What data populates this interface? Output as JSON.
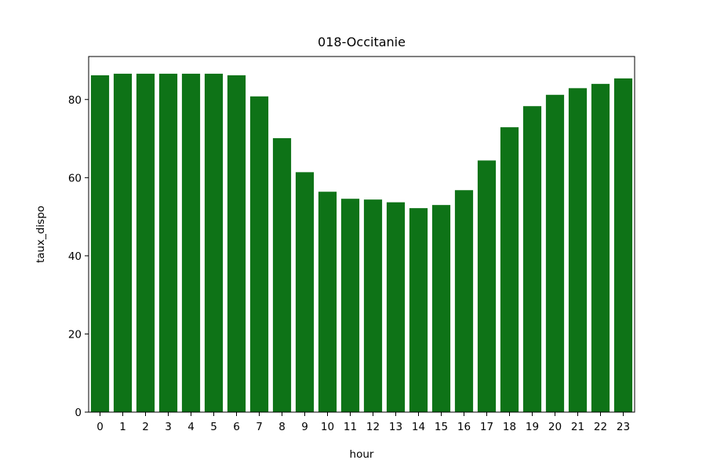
{
  "chart_data": {
    "type": "bar",
    "title": "018-Occitanie",
    "xlabel": "hour",
    "ylabel": "taux_dispo",
    "categories": [
      "0",
      "1",
      "2",
      "3",
      "4",
      "5",
      "6",
      "7",
      "8",
      "9",
      "10",
      "11",
      "12",
      "13",
      "14",
      "15",
      "16",
      "17",
      "18",
      "19",
      "20",
      "21",
      "22",
      "23"
    ],
    "values": [
      86.2,
      86.6,
      86.6,
      86.6,
      86.6,
      86.6,
      86.2,
      80.8,
      70.1,
      61.4,
      56.4,
      54.6,
      54.4,
      53.7,
      52.2,
      53.0,
      56.8,
      64.4,
      72.9,
      78.3,
      81.2,
      82.9,
      84.0,
      85.4
    ],
    "ylim": [
      0,
      91
    ],
    "yticks": [
      0,
      20,
      40,
      60,
      80
    ],
    "grid": false,
    "bar_color": "#0e7317"
  }
}
